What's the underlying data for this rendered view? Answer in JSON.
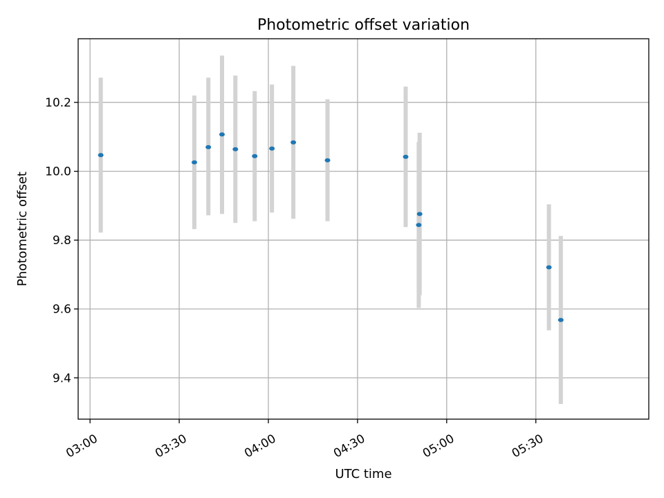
{
  "chart_data": {
    "type": "scatter",
    "title": "Photometric offset variation",
    "xlabel": "UTC time",
    "ylabel": "Photometric offset",
    "x_axis_type": "time",
    "xlim": [
      "02:56",
      "06:08"
    ],
    "ylim": [
      9.28,
      10.385
    ],
    "x_ticks": [
      {
        "time": "03:00",
        "label": "03:00"
      },
      {
        "time": "03:30",
        "label": "03:30"
      },
      {
        "time": "04:00",
        "label": "04:00"
      },
      {
        "time": "04:30",
        "label": "04:30"
      },
      {
        "time": "05:00",
        "label": "05:00"
      },
      {
        "time": "05:30",
        "label": "05:30"
      }
    ],
    "y_ticks": [
      {
        "value": 9.4,
        "label": "9.4"
      },
      {
        "value": 9.6,
        "label": "9.6"
      },
      {
        "value": 9.8,
        "label": "9.8"
      },
      {
        "value": 10.0,
        "label": "10.0"
      },
      {
        "value": 10.2,
        "label": "10.2"
      }
    ],
    "grid": true,
    "colors": {
      "marker": "#1f77b4",
      "errorbar": "#d3d3d3"
    },
    "series": [
      {
        "points": [
          {
            "time": "03:03:36",
            "y": 10.047,
            "low": 9.822,
            "high": 10.272
          },
          {
            "time": "03:35:06",
            "y": 10.026,
            "low": 9.832,
            "high": 10.22
          },
          {
            "time": "03:39:48",
            "y": 10.07,
            "low": 9.872,
            "high": 10.272
          },
          {
            "time": "03:44:24",
            "y": 10.107,
            "low": 9.876,
            "high": 10.336
          },
          {
            "time": "03:48:54",
            "y": 10.064,
            "low": 9.85,
            "high": 10.278
          },
          {
            "time": "03:55:24",
            "y": 10.044,
            "low": 9.855,
            "high": 10.233
          },
          {
            "time": "04:01:12",
            "y": 10.066,
            "low": 9.88,
            "high": 10.252
          },
          {
            "time": "04:08:24",
            "y": 10.084,
            "low": 9.862,
            "high": 10.306
          },
          {
            "time": "04:19:54",
            "y": 10.032,
            "low": 9.855,
            "high": 10.209
          },
          {
            "time": "04:46:12",
            "y": 10.042,
            "low": 9.838,
            "high": 10.246
          },
          {
            "time": "04:50:36",
            "y": 9.844,
            "low": 9.603,
            "high": 10.085
          },
          {
            "time": "04:50:54",
            "y": 9.876,
            "low": 9.64,
            "high": 10.112
          },
          {
            "time": "05:34:24",
            "y": 9.721,
            "low": 9.538,
            "high": 9.904
          },
          {
            "time": "05:38:24",
            "y": 9.568,
            "low": 9.324,
            "high": 9.812
          }
        ]
      }
    ]
  }
}
